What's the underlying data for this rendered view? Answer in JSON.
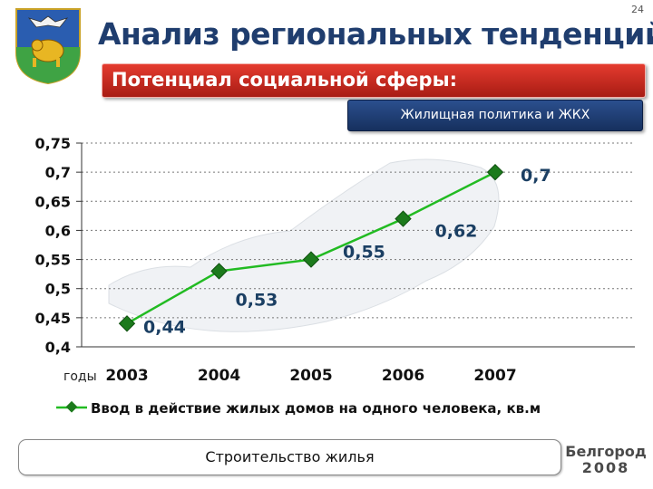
{
  "slide": {
    "number": "24"
  },
  "header": {
    "title": "Анализ региональных тенденций",
    "section_bar": "Потенциал социальной сферы:",
    "subsection_tag": "Жилищная политика и ЖКХ"
  },
  "footer": {
    "button_label": "Строительство жилья",
    "brand_line1": "Белгород",
    "brand_line2": "2008"
  },
  "colors": {
    "title": "#1f3d6e",
    "bar_red": "#c9261c",
    "tag_blue": "#1f3f78",
    "series_line": "#22bb22",
    "marker": "#1c7a1c"
  },
  "chart_data": {
    "type": "line",
    "title": "",
    "xlabel": "годы",
    "ylabel": "",
    "x": [
      "2003",
      "2004",
      "2005",
      "2006",
      "2007"
    ],
    "y_ticks": [
      "0,4",
      "0,45",
      "0,5",
      "0,55",
      "0,6",
      "0,65",
      "0,7",
      "0,75"
    ],
    "ylim": [
      0.4,
      0.75
    ],
    "grid": "horizontal-dotted",
    "legend": "bottom",
    "series": [
      {
        "name": "Ввод в действие жилых домов на одного человека, кв.м",
        "values": [
          0.44,
          0.53,
          0.55,
          0.62,
          0.7
        ],
        "labels": [
          "0,44",
          "0,53",
          "0,55",
          "0,62",
          "0,7"
        ]
      }
    ]
  }
}
